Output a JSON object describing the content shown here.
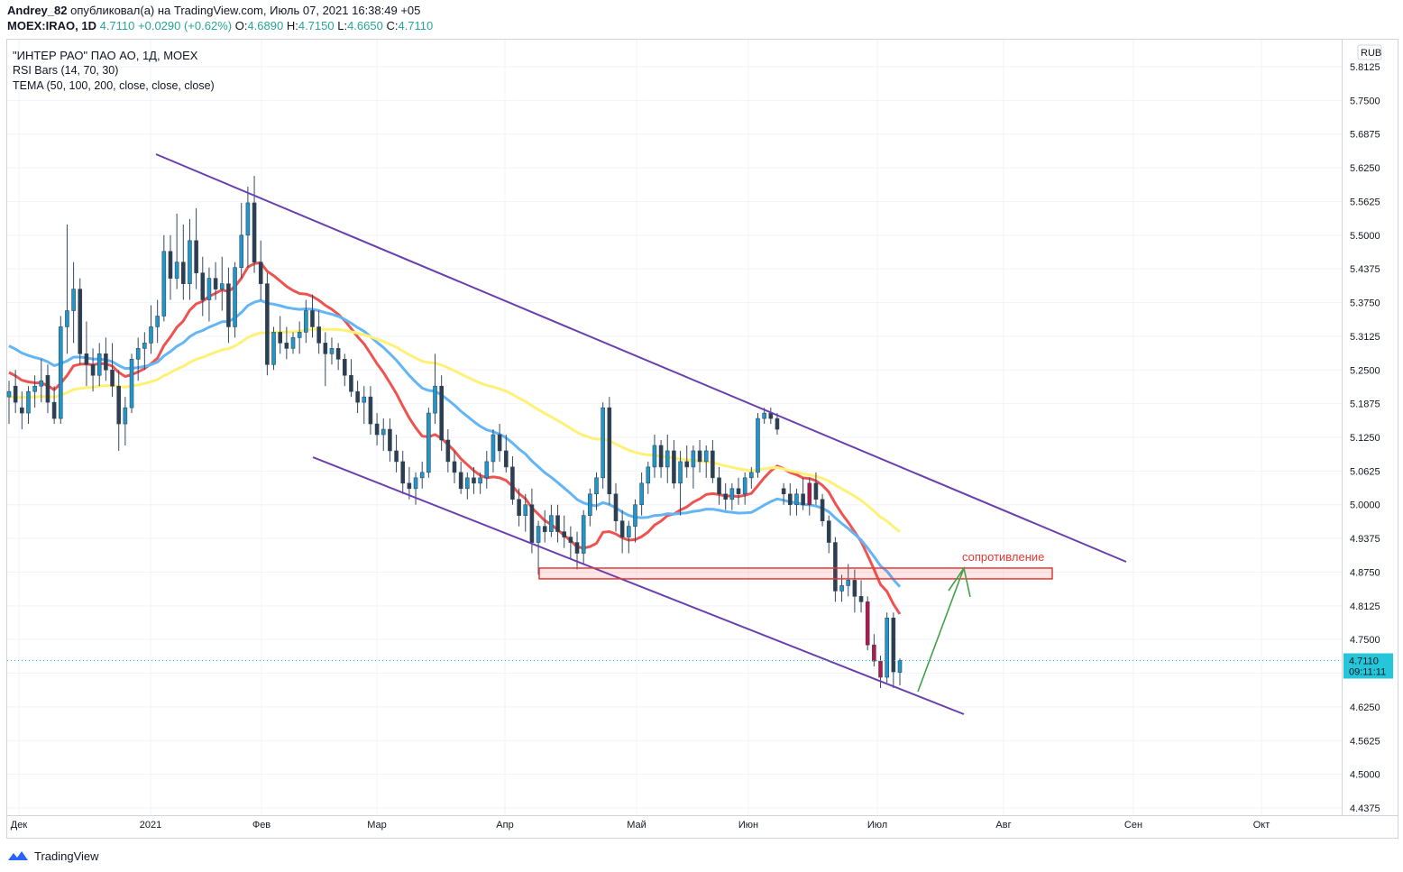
{
  "header": {
    "author": "Andrey_82",
    "published": "опубликовал(а) на TradingView.com, Июль 07, 2021 16:38:49 +05",
    "symbol_line": "MOEX:IRAO, 1D",
    "last": "4.7110",
    "change": "+0.0290 (+0.62%)",
    "o_label": "O:",
    "o_value": "4.6890",
    "h_label": "H:",
    "h_value": "4.7150",
    "l_label": "L:",
    "l_value": "4.6650",
    "c_label": "C:",
    "c_value": "4.7110"
  },
  "legend": {
    "title": "\"ИНТЕР РАО\" ПАО АО, 1Д, MOEX",
    "ind1": "RSI Bars (14, 70, 30)",
    "ind2": "TEMA (50, 100, 200, close, close, close)"
  },
  "footer": {
    "brand": "TradingView"
  },
  "colors": {
    "up_bar": "#2196c9",
    "down_bar": "#b8154a",
    "neutral_bar": "#2c3e50",
    "tema50": "#ef5350",
    "tema100": "#64b5f6",
    "tema200": "#fff176",
    "channel": "#6a3fb0",
    "zone": "#e53935",
    "arrow": "#43a047",
    "price_badge": "#26c6da"
  },
  "chart_data": {
    "type": "candlestick",
    "currency": "RUB",
    "ylim": [
      4.4375,
      5.8125
    ],
    "y_ticks": [
      "5.8125",
      "5.7500",
      "5.6875",
      "5.6250",
      "5.5625",
      "5.5000",
      "5.4375",
      "5.3750",
      "5.3125",
      "5.2500",
      "5.1875",
      "5.1250",
      "5.0625",
      "5.0000",
      "4.9375",
      "4.8750",
      "4.8125",
      "4.7500",
      "4.6875",
      "4.6250",
      "4.5625",
      "4.5000",
      "4.4375"
    ],
    "x_ticks": [
      "Дек",
      "2021",
      "Фев",
      "Мар",
      "Апр",
      "Май",
      "Июн",
      "Июл",
      "Авг",
      "Сен",
      "Окт"
    ],
    "last_price_label": "4.7110",
    "countdown_label": "09:11:11",
    "annotation": "сопротивление",
    "resistance_zone": [
      4.8625,
      4.8825
    ],
    "channel_upper": [
      [
        5.645,
        4.89
      ]
    ],
    "channel_lower": [
      [
        5.085,
        4.61
      ]
    ],
    "candles": [
      [
        5.2,
        5.23,
        5.15,
        5.21
      ],
      [
        5.22,
        5.25,
        5.17,
        5.19
      ],
      [
        5.18,
        5.21,
        5.14,
        5.17
      ],
      [
        5.17,
        5.22,
        5.15,
        5.21
      ],
      [
        5.21,
        5.24,
        5.18,
        5.22
      ],
      [
        5.22,
        5.27,
        5.19,
        5.23
      ],
      [
        5.24,
        5.26,
        5.17,
        5.19
      ],
      [
        5.19,
        5.22,
        5.15,
        5.16
      ],
      [
        5.16,
        5.35,
        5.15,
        5.33
      ],
      [
        5.33,
        5.52,
        5.28,
        5.36
      ],
      [
        5.36,
        5.45,
        5.3,
        5.4
      ],
      [
        5.4,
        5.42,
        5.26,
        5.28
      ],
      [
        5.28,
        5.34,
        5.22,
        5.26
      ],
      [
        5.26,
        5.29,
        5.21,
        5.24
      ],
      [
        5.24,
        5.3,
        5.22,
        5.28
      ],
      [
        5.28,
        5.31,
        5.23,
        5.25
      ],
      [
        5.25,
        5.3,
        5.2,
        5.22
      ],
      [
        5.22,
        5.25,
        5.1,
        5.15
      ],
      [
        5.15,
        5.2,
        5.11,
        5.18
      ],
      [
        5.18,
        5.28,
        5.17,
        5.27
      ],
      [
        5.27,
        5.31,
        5.23,
        5.29
      ],
      [
        5.29,
        5.32,
        5.25,
        5.3
      ],
      [
        5.3,
        5.37,
        5.28,
        5.33
      ],
      [
        5.33,
        5.38,
        5.3,
        5.35
      ],
      [
        5.35,
        5.5,
        5.34,
        5.47
      ],
      [
        5.47,
        5.5,
        5.38,
        5.42
      ],
      [
        5.42,
        5.54,
        5.4,
        5.45
      ],
      [
        5.45,
        5.52,
        5.38,
        5.41
      ],
      [
        5.41,
        5.53,
        5.38,
        5.49
      ],
      [
        5.49,
        5.55,
        5.4,
        5.43
      ],
      [
        5.43,
        5.46,
        5.35,
        5.38
      ],
      [
        5.38,
        5.44,
        5.34,
        5.42
      ],
      [
        5.42,
        5.45,
        5.38,
        5.4
      ],
      [
        5.4,
        5.46,
        5.36,
        5.41
      ],
      [
        5.41,
        5.44,
        5.3,
        5.33
      ],
      [
        5.33,
        5.45,
        5.31,
        5.44
      ],
      [
        5.44,
        5.56,
        5.42,
        5.5
      ],
      [
        5.5,
        5.59,
        5.44,
        5.56
      ],
      [
        5.56,
        5.61,
        5.43,
        5.45
      ],
      [
        5.45,
        5.49,
        5.38,
        5.41
      ],
      [
        5.41,
        5.43,
        5.24,
        5.26
      ],
      [
        5.26,
        5.33,
        5.25,
        5.32
      ],
      [
        5.32,
        5.35,
        5.28,
        5.3
      ],
      [
        5.3,
        5.33,
        5.27,
        5.29
      ],
      [
        5.29,
        5.32,
        5.28,
        5.31
      ],
      [
        5.31,
        5.34,
        5.28,
        5.32
      ],
      [
        5.32,
        5.38,
        5.3,
        5.36
      ],
      [
        5.36,
        5.39,
        5.31,
        5.33
      ],
      [
        5.33,
        5.36,
        5.28,
        5.3
      ],
      [
        5.3,
        5.32,
        5.22,
        5.28
      ],
      [
        5.28,
        5.31,
        5.26,
        5.29
      ],
      [
        5.29,
        5.3,
        5.25,
        5.27
      ],
      [
        5.27,
        5.28,
        5.22,
        5.24
      ],
      [
        5.24,
        5.27,
        5.2,
        5.21
      ],
      [
        5.21,
        5.23,
        5.17,
        5.19
      ],
      [
        5.19,
        5.22,
        5.15,
        5.2
      ],
      [
        5.2,
        5.22,
        5.13,
        5.15
      ],
      [
        5.15,
        5.17,
        5.11,
        5.13
      ],
      [
        5.13,
        5.16,
        5.1,
        5.14
      ],
      [
        5.14,
        5.16,
        5.08,
        5.1
      ],
      [
        5.1,
        5.13,
        5.06,
        5.08
      ],
      [
        5.08,
        5.1,
        5.02,
        5.04
      ],
      [
        5.04,
        5.07,
        5.01,
        5.03
      ],
      [
        5.03,
        5.06,
        5.0,
        5.05
      ],
      [
        5.05,
        5.08,
        5.03,
        5.06
      ],
      [
        5.06,
        5.18,
        5.05,
        5.17
      ],
      [
        5.17,
        5.28,
        5.15,
        5.22
      ],
      [
        5.22,
        5.24,
        5.1,
        5.12
      ],
      [
        5.12,
        5.14,
        5.06,
        5.08
      ],
      [
        5.08,
        5.1,
        5.04,
        5.06
      ],
      [
        5.06,
        5.08,
        5.02,
        5.03
      ],
      [
        5.03,
        5.06,
        5.01,
        5.05
      ],
      [
        5.05,
        5.07,
        5.02,
        5.04
      ],
      [
        5.04,
        5.06,
        5.02,
        5.05
      ],
      [
        5.05,
        5.1,
        5.03,
        5.08
      ],
      [
        5.08,
        5.14,
        5.06,
        5.13
      ],
      [
        5.13,
        5.15,
        5.08,
        5.1
      ],
      [
        5.1,
        5.13,
        5.06,
        5.07
      ],
      [
        5.07,
        5.09,
        5.0,
        5.01
      ],
      [
        5.01,
        5.03,
        4.96,
        4.98
      ],
      [
        4.98,
        5.02,
        4.95,
        5.0
      ],
      [
        5.0,
        5.03,
        4.91,
        4.93
      ],
      [
        4.93,
        4.97,
        4.87,
        4.96
      ],
      [
        4.96,
        4.99,
        4.93,
        4.95
      ],
      [
        4.95,
        5.0,
        4.94,
        4.98
      ],
      [
        4.98,
        5.0,
        4.93,
        4.95
      ],
      [
        4.95,
        4.98,
        4.92,
        4.94
      ],
      [
        4.94,
        4.96,
        4.9,
        4.93
      ],
      [
        4.93,
        4.95,
        4.88,
        4.91
      ],
      [
        4.91,
        4.99,
        4.89,
        4.98
      ],
      [
        4.98,
        5.03,
        4.96,
        5.02
      ],
      [
        5.02,
        5.06,
        4.99,
        5.05
      ],
      [
        5.05,
        5.19,
        5.03,
        5.18
      ],
      [
        5.18,
        5.2,
        5.0,
        5.02
      ],
      [
        5.02,
        5.04,
        4.95,
        4.97
      ],
      [
        4.97,
        4.99,
        4.91,
        4.94
      ],
      [
        4.94,
        4.97,
        4.91,
        4.96
      ],
      [
        4.96,
        5.01,
        4.93,
        5.0
      ],
      [
        5.0,
        5.06,
        4.98,
        5.04
      ],
      [
        5.04,
        5.08,
        5.02,
        5.07
      ],
      [
        5.07,
        5.13,
        5.05,
        5.11
      ],
      [
        5.11,
        5.12,
        5.05,
        5.07
      ],
      [
        5.07,
        5.13,
        5.04,
        5.1
      ],
      [
        5.1,
        5.12,
        5.03,
        5.04
      ],
      [
        5.04,
        5.1,
        4.98,
        5.08
      ],
      [
        5.08,
        5.11,
        5.05,
        5.07
      ],
      [
        5.07,
        5.11,
        5.03,
        5.1
      ],
      [
        5.1,
        5.12,
        5.06,
        5.08
      ],
      [
        5.08,
        5.11,
        5.05,
        5.1
      ],
      [
        5.1,
        5.12,
        5.04,
        5.05
      ],
      [
        5.05,
        5.07,
        5.0,
        5.02
      ],
      [
        5.02,
        5.04,
        4.99,
        5.01
      ],
      [
        5.01,
        5.04,
        4.99,
        5.03
      ],
      [
        5.03,
        5.05,
        5.0,
        5.02
      ],
      [
        5.02,
        5.06,
        5.0,
        5.05
      ],
      [
        5.05,
        5.07,
        5.03,
        5.06
      ],
      [
        5.06,
        5.17,
        5.05,
        5.16
      ],
      [
        5.16,
        5.18,
        5.15,
        5.17
      ],
      [
        5.17,
        5.18,
        5.15,
        5.16
      ],
      [
        5.16,
        5.17,
        5.13,
        5.14
      ],
      [
        5.03,
        5.04,
        5.0,
        5.02
      ],
      [
        5.02,
        5.04,
        4.98,
        5.0
      ],
      [
        5.0,
        5.03,
        4.98,
        5.02
      ],
      [
        5.02,
        5.05,
        4.99,
        5.0
      ],
      [
        5.0,
        5.05,
        4.98,
        5.04
      ],
      [
        5.04,
        5.06,
        5.0,
        5.01
      ],
      [
        5.01,
        5.02,
        4.96,
        4.97
      ],
      [
        4.97,
        4.98,
        4.91,
        4.93
      ],
      [
        4.93,
        4.94,
        4.82,
        4.84
      ],
      [
        4.84,
        4.87,
        4.82,
        4.85
      ],
      [
        4.85,
        4.89,
        4.83,
        4.86
      ],
      [
        4.86,
        4.88,
        4.8,
        4.83
      ],
      [
        4.83,
        4.86,
        4.8,
        4.82
      ],
      [
        4.82,
        4.83,
        4.73,
        4.74
      ],
      [
        4.74,
        4.76,
        4.7,
        4.71
      ],
      [
        4.71,
        4.72,
        4.66,
        4.68
      ],
      [
        4.68,
        4.8,
        4.67,
        4.79
      ],
      [
        4.79,
        4.8,
        4.66,
        4.69
      ],
      [
        4.689,
        4.715,
        4.665,
        4.711
      ]
    ],
    "series": [
      {
        "name": "TEMA 50"
      },
      {
        "name": "TEMA 100"
      },
      {
        "name": "TEMA 200"
      }
    ]
  }
}
